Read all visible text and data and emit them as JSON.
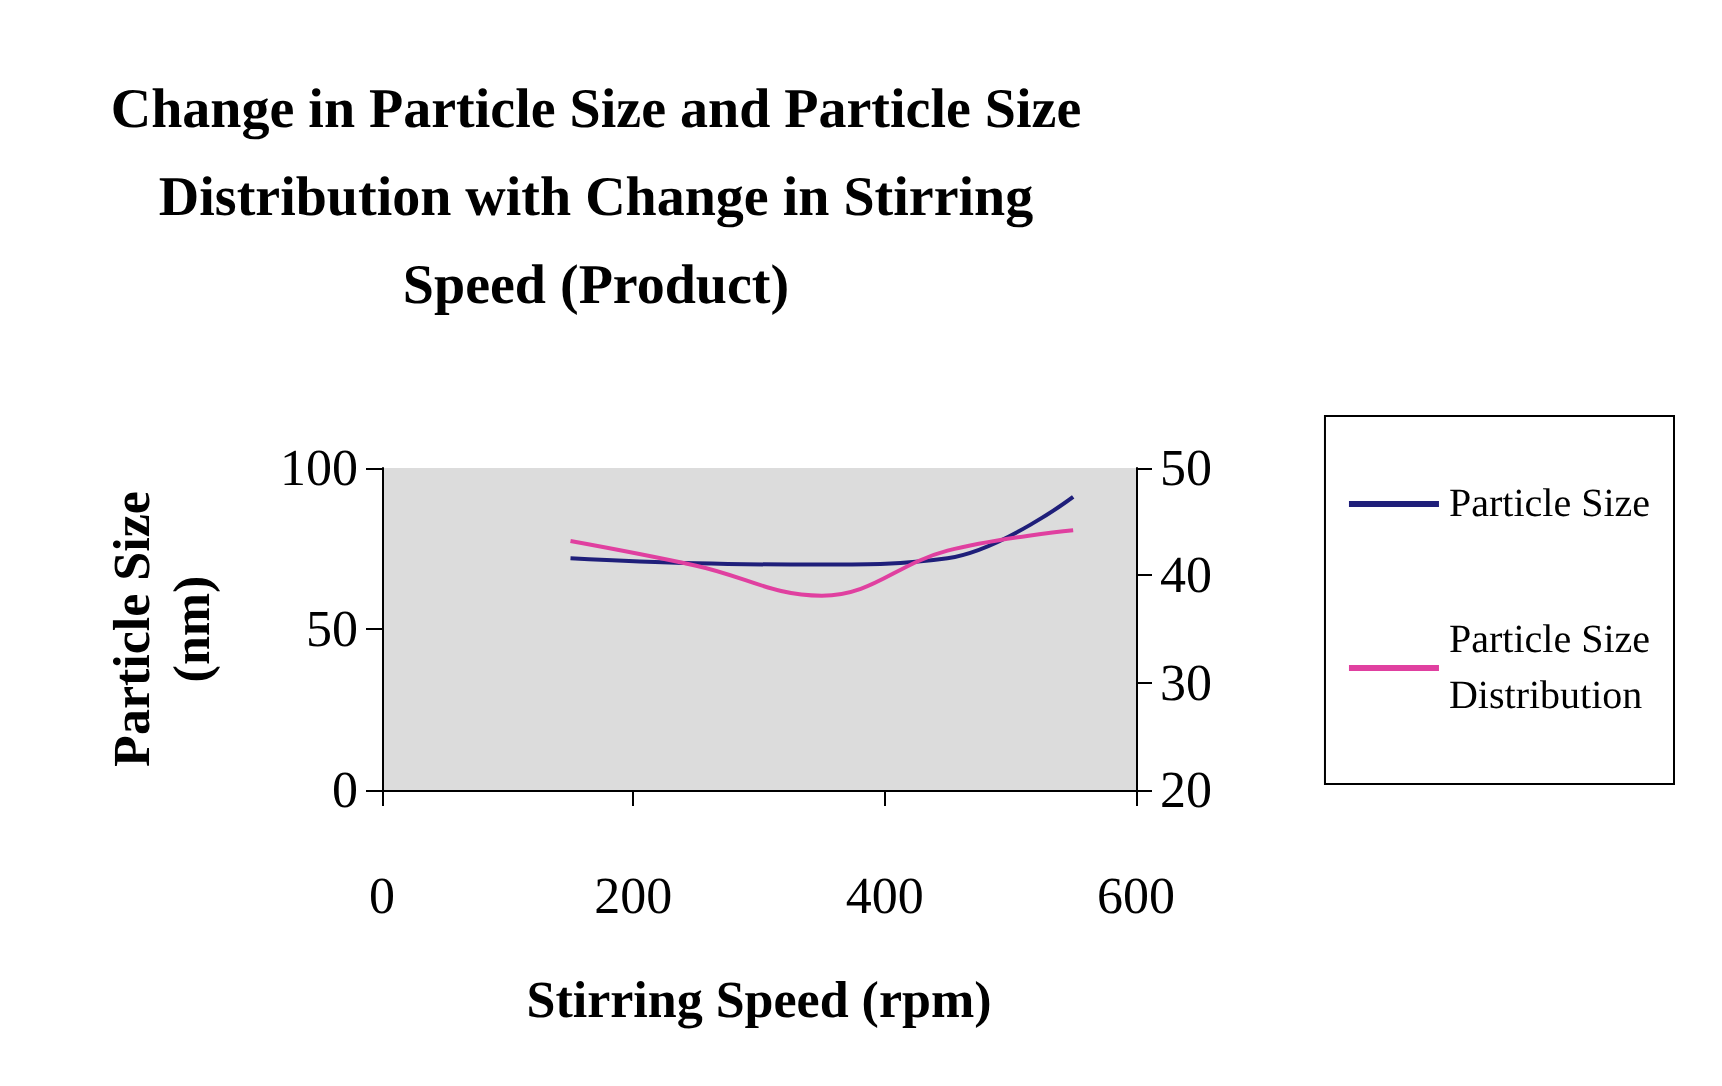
{
  "chart_data": {
    "type": "line",
    "title": "Change in Particle Size and Particle Size\nDistribution with Change in Stirring\nSpeed (Product)",
    "xlabel": "Stirring Speed (rpm)",
    "ylabel": "Particle Size\n(nm)",
    "x": [
      150,
      250,
      350,
      450,
      550
    ],
    "series": [
      {
        "name": "Particle Size",
        "color": "#1f1f7a",
        "values": [
          72,
          70.4,
          70,
          72,
          91
        ]
      },
      {
        "name": "Particle Size\nDistribution",
        "color": "#e040a0",
        "axis": "y2",
        "values": [
          43.2,
          40.9,
          38.1,
          42.3,
          44.2
        ]
      }
    ],
    "xlim": [
      0,
      600
    ],
    "xticks": [
      0,
      200,
      400,
      600
    ],
    "ylim": [
      0,
      100
    ],
    "yticks": [
      0,
      50,
      100
    ],
    "y2lim": [
      20,
      50
    ],
    "y2ticks": [
      20,
      30,
      40,
      50
    ],
    "grid": false,
    "legend": "right",
    "marker": "none"
  }
}
